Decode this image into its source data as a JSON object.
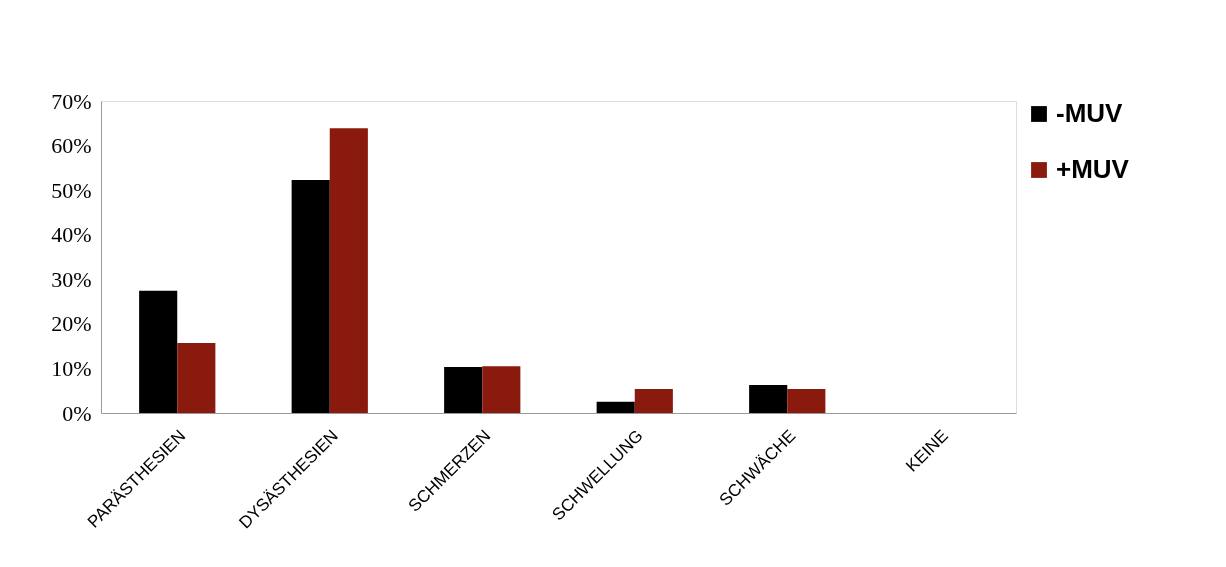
{
  "chart_data": {
    "type": "bar",
    "categories": [
      "PARÄSTHESIEN",
      "DYSÄSTHESIEN",
      "SCHMERZEN",
      "SCHWELLUNG",
      "SCHWÄCHE",
      "KEINE"
    ],
    "series": [
      {
        "name": "-MUV",
        "color": "#000000",
        "values": [
          27.4,
          52.3,
          10.3,
          2.5,
          6.3,
          0
        ]
      },
      {
        "name": "+MUV",
        "color": "#8b1a0e",
        "values": [
          15.7,
          63.9,
          10.5,
          5.4,
          5.4,
          0
        ]
      }
    ],
    "ylim": [
      0,
      70
    ],
    "yticks": [
      {
        "value": 0,
        "label": "0%"
      },
      {
        "value": 10,
        "label": "10%"
      },
      {
        "value": 20,
        "label": "20%"
      },
      {
        "value": 30,
        "label": "30%"
      },
      {
        "value": 40,
        "label": "40%"
      },
      {
        "value": 50,
        "label": "50%"
      },
      {
        "value": 60,
        "label": "60%"
      },
      {
        "value": 70,
        "label": "70%"
      }
    ],
    "grid": false,
    "legend": "right"
  }
}
